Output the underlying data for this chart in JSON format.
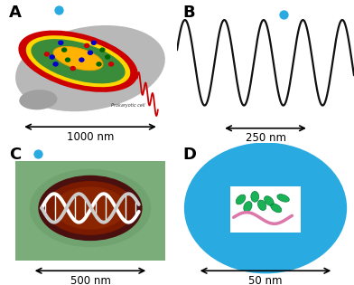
{
  "panel_labels": [
    "A",
    "B",
    "C",
    "D"
  ],
  "panel_label_fontsize": 13,
  "panel_label_fontweight": "bold",
  "scale_labels": [
    "1000 nm",
    "250 nm",
    "500 nm",
    "50 nm"
  ],
  "dot_color": "#29ABE2",
  "dot_size": 55,
  "bg_color": "#ffffff",
  "sine_color": "#111111",
  "sine_lw": 1.6,
  "arrow_color": "#000000",
  "scale_fontsize": 8.5,
  "panel_A_text": "Prokaryotic cell",
  "cyan_color": "#29ABE2",
  "cell_red": "#CC0000",
  "cell_yellow": "#FFD700",
  "cell_green": "#3A8B3A",
  "cell_gray": "#AAAAAA",
  "nucleoid_yellow": "#FFB300"
}
